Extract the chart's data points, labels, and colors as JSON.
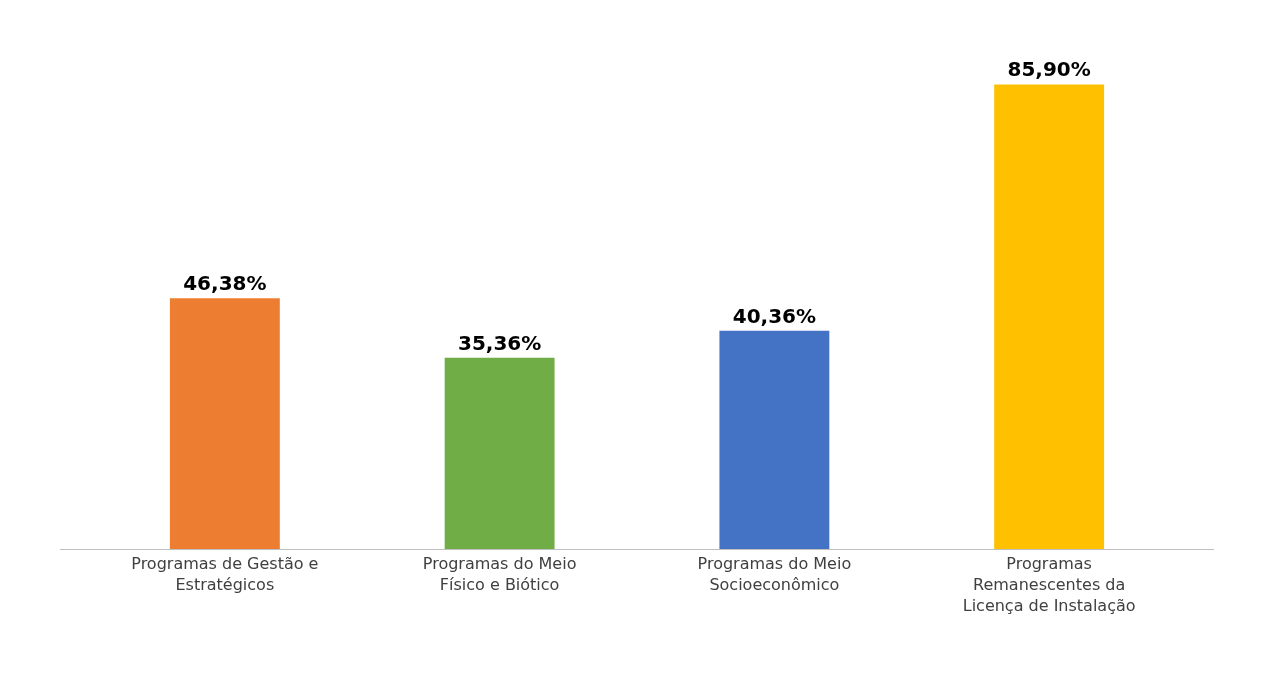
{
  "chart_data": {
    "type": "bar",
    "categories": [
      "Programas de Gestão e Estratégicos",
      "Programas do Meio Físico e Biótico",
      "Programas do Meio Socioeconômico",
      "Programas Remanescentes da Licença de Instalação"
    ],
    "values": [
      46.38,
      35.36,
      40.36,
      85.9
    ],
    "colors": [
      "#ed7d31",
      "#70ad47",
      "#4472c4",
      "#ffc000"
    ],
    "value_labels": [
      "46,38%",
      "35,36%",
      "40,36%",
      "85,90%"
    ]
  }
}
